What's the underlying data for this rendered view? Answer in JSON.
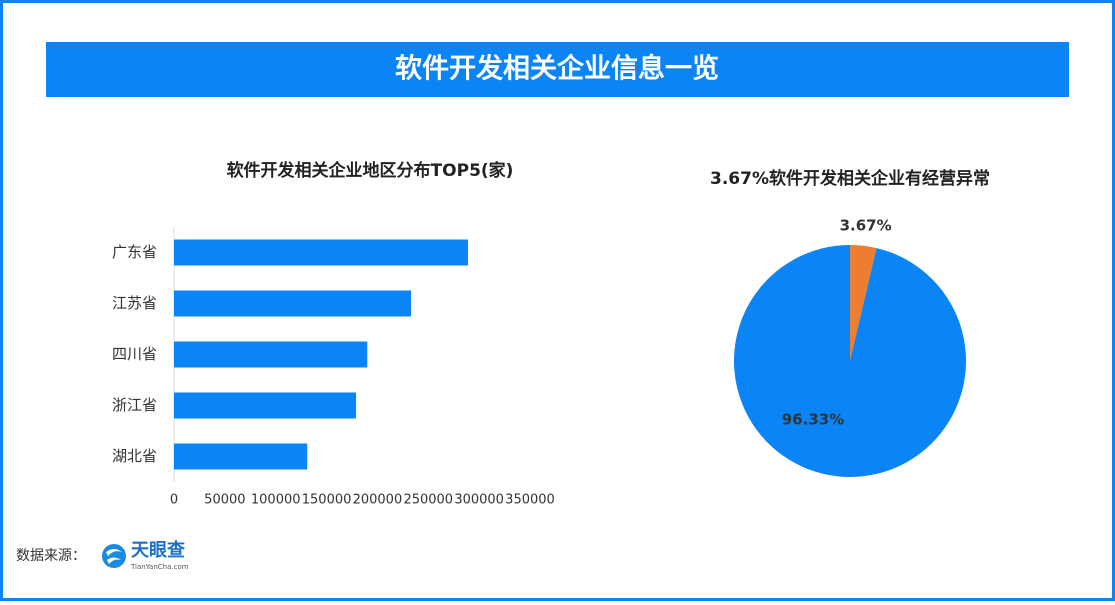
{
  "title": "软件开发相关企业信息一览",
  "chart_data": [
    {
      "type": "bar",
      "orientation": "horizontal",
      "title": "软件开发相关企业地区分布TOP5(家)",
      "categories": [
        "广东省",
        "江苏省",
        "四川省",
        "浙江省",
        "湖北省"
      ],
      "values": [
        289000,
        233000,
        190000,
        179000,
        131000
      ],
      "color": "#0b84f5",
      "xlim": [
        0,
        350000
      ],
      "xticks": [
        0,
        50000,
        100000,
        150000,
        200000,
        250000,
        300000,
        350000
      ],
      "grid": false
    },
    {
      "type": "pie",
      "title": "3.67%软件开发相关企业有经营异常",
      "values": [
        3.67,
        96.33
      ],
      "value_labels": [
        "3.67%",
        "96.33%"
      ],
      "colors": [
        "#ed7d31",
        "#0b84f5"
      ]
    }
  ],
  "source": {
    "label": "数据来源：",
    "logo": "天眼查",
    "site": "TianYanCha.com"
  }
}
